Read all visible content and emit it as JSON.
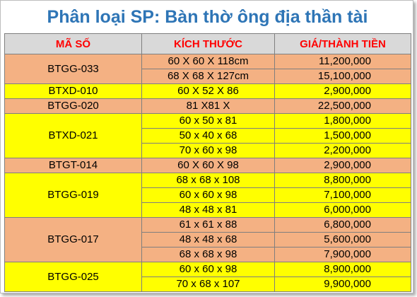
{
  "title": "Phân loại SP: Bàn thờ ông địa thần tài",
  "headers": {
    "code": "MÃ SỐ",
    "size": "KÍCH THƯỚC",
    "price": "GIÁ/THÀNH TIỀN"
  },
  "colors": {
    "title": "#2e75b6",
    "header_text": "#ff0000",
    "header_bg": "#d9d9d9",
    "orange": "#f4b183",
    "yellow": "#ffff00"
  },
  "groups": [
    {
      "code": "BTGG-033",
      "color": "orange",
      "rows": [
        {
          "size": "60 X 60 X 118cm",
          "price": "11,200,000"
        },
        {
          "size": "68 X 68 X 127cm",
          "price": "15,100,000"
        }
      ]
    },
    {
      "code": "BTXD-010",
      "color": "yellow",
      "rows": [
        {
          "size": "60 X 52 X 86",
          "price": "2,900,000"
        }
      ]
    },
    {
      "code": "BTGG-020",
      "color": "orange",
      "rows": [
        {
          "size": "81 X81 X",
          "price": "22,500,000"
        }
      ]
    },
    {
      "code": "BTXD-021",
      "color": "yellow",
      "rows": [
        {
          "size": "60 x 50 x 81",
          "price": "1,800,000"
        },
        {
          "size": "50 x 40 x 68",
          "price": "1,500,000"
        },
        {
          "size": "70 x 60 x 98",
          "price": "2,200,000"
        }
      ]
    },
    {
      "code": "BTGT-014",
      "color": "orange",
      "rows": [
        {
          "size": "60 X 60 X 98",
          "price": "2,900,000"
        }
      ]
    },
    {
      "code": "BTGG-019",
      "color": "yellow",
      "rows": [
        {
          "size": "68 x 68 x 108",
          "price": "8,800,000"
        },
        {
          "size": "60 x 60 x 98",
          "price": "7,100,000"
        },
        {
          "size": "48 x 48 x 81",
          "price": "6,000,000"
        }
      ]
    },
    {
      "code": "BTGG-017",
      "color": "orange",
      "rows": [
        {
          "size": "61 x 61 x 88",
          "price": "6,800,000"
        },
        {
          "size": "48 x 48 x 68",
          "price": "5,600,000"
        },
        {
          "size": "68 x 68 x 98",
          "price": "7,900,000"
        }
      ]
    },
    {
      "code": "BTGG-025",
      "color": "yellow",
      "rows": [
        {
          "size": "60 x 60 x 98",
          "price": "8,900,000"
        },
        {
          "size": "70 x 68 x 107",
          "price": "9,900,000"
        }
      ]
    }
  ]
}
